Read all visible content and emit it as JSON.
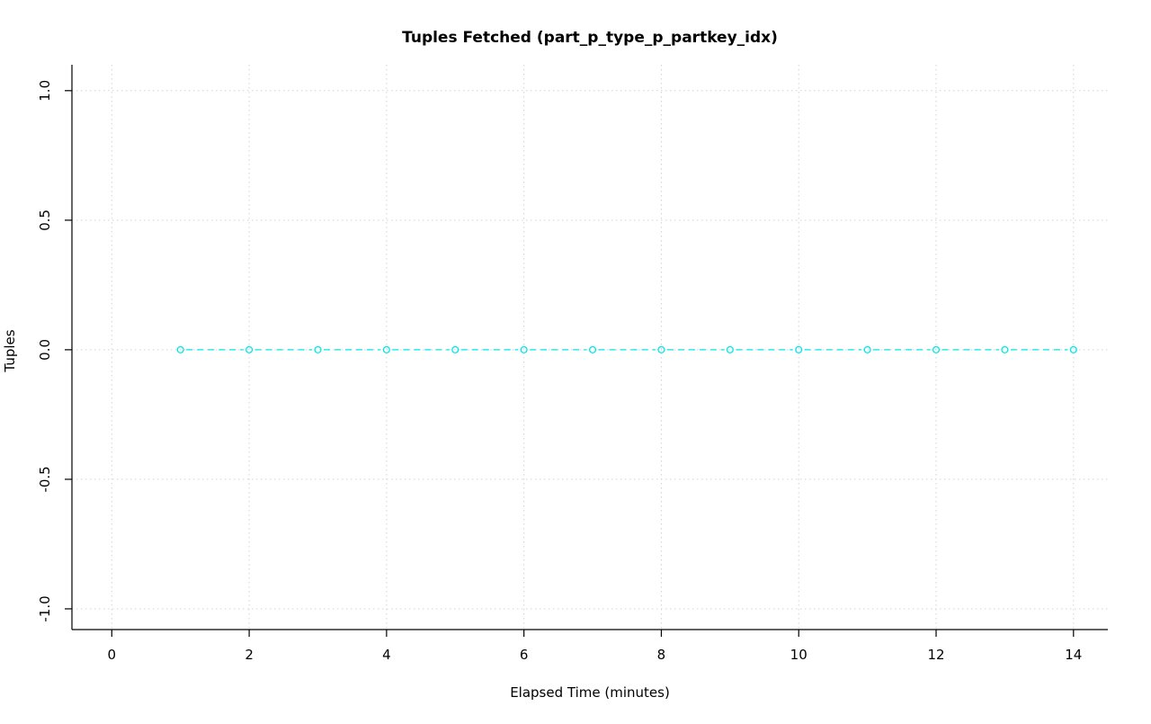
{
  "chart_data": {
    "type": "line",
    "title": "Tuples Fetched (part_p_type_p_partkey_idx)",
    "xlabel": "Elapsed Time (minutes)",
    "ylabel": "Tuples",
    "x": [
      1,
      2,
      3,
      4,
      5,
      6,
      7,
      8,
      9,
      10,
      11,
      12,
      13,
      14
    ],
    "y": [
      0,
      0,
      0,
      0,
      0,
      0,
      0,
      0,
      0,
      0,
      0,
      0,
      0,
      0
    ],
    "xlim": [
      -0.58,
      14.5
    ],
    "ylim": [
      -1.08,
      1.1
    ],
    "xticks": [
      0,
      2,
      4,
      6,
      8,
      10,
      12,
      14
    ],
    "yticks": [
      -1.0,
      -0.5,
      0.0,
      0.5,
      1.0
    ],
    "xtick_labels": [
      "0",
      "2",
      "4",
      "6",
      "8",
      "10",
      "12",
      "14"
    ],
    "ytick_labels": [
      "-1.0",
      "-0.5",
      "0.0",
      "0.5",
      "1.0"
    ],
    "grid": true,
    "legend": "none",
    "marker": "open-circle",
    "line_style": "dashed",
    "colors": {
      "series": "#00E8E8",
      "grid": "#D3D3D3",
      "axis": "#000000",
      "background": "#FFFFFF"
    }
  }
}
